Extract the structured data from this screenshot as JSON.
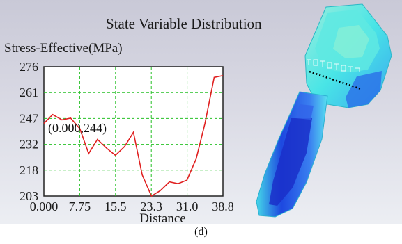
{
  "window": {
    "title": "State Variable Distribution",
    "caption": "(d)"
  },
  "chart_data": {
    "type": "line",
    "title": "State Variable Distribution",
    "ylabel": "Stress-Effective(MPa)",
    "xlabel": "Distance",
    "xlim": [
      0.0,
      38.8
    ],
    "ylim": [
      203,
      276
    ],
    "x_tick_labels": [
      "0.000",
      "7.75",
      "15.5",
      "23.3",
      "31.0",
      "38.8"
    ],
    "y_tick_labels": [
      "276",
      "261",
      "247",
      "232",
      "218",
      "203"
    ],
    "grid": true,
    "annotation": "(0.000,244)",
    "series": [
      {
        "color": "#e02020",
        "x": [
          0.0,
          1.9,
          3.9,
          5.8,
          7.8,
          9.7,
          11.6,
          13.6,
          15.5,
          17.5,
          19.4,
          21.3,
          23.3,
          25.2,
          27.2,
          29.1,
          31.0,
          33.0,
          34.9,
          36.9,
          38.8
        ],
        "y": [
          244,
          249,
          246,
          247,
          241,
          227,
          235,
          230,
          226,
          231,
          239,
          215,
          203,
          206,
          211,
          210,
          212,
          224,
          244,
          270,
          271
        ]
      }
    ]
  },
  "model": {
    "colors": {
      "cyan": "#49e7e6",
      "teal": "#2fd3c0",
      "blue": "#1c45e0",
      "deep_blue": "#1526b8",
      "green": "#7cf07a"
    }
  }
}
